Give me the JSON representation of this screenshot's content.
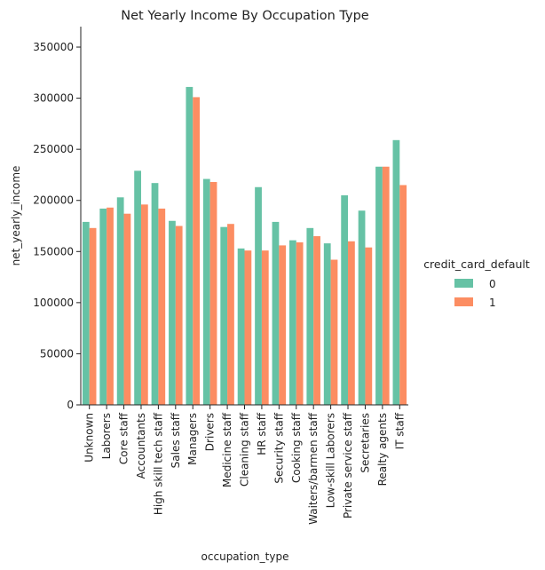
{
  "chart_data": {
    "type": "bar",
    "title": "Net Yearly Income By Occupation Type",
    "xlabel": "occupation_type",
    "ylabel": "net_yearly_income",
    "ylim": [
      0,
      370000
    ],
    "yticks": [
      0,
      50000,
      100000,
      150000,
      200000,
      250000,
      300000,
      350000
    ],
    "grid": false,
    "legend": {
      "title": "credit_card_default",
      "placement": "right"
    },
    "categories": [
      "Unknown",
      "Laborers",
      "Core staff",
      "Accountants",
      "High skill tech staff",
      "Sales staff",
      "Managers",
      "Drivers",
      "Medicine staff",
      "Cleaning staff",
      "HR staff",
      "Security staff",
      "Cooking staff",
      "Waiters/barmen staff",
      "Low-skill Laborers",
      "Private service staff",
      "Secretaries",
      "Realty agents",
      "IT staff"
    ],
    "series": [
      {
        "name": "0",
        "color": "#66c2a5",
        "values": [
          179000,
          192000,
          203000,
          229000,
          217000,
          180000,
          311000,
          221000,
          174000,
          153000,
          213000,
          179000,
          161000,
          173000,
          158000,
          205000,
          190000,
          233000,
          259000
        ]
      },
      {
        "name": "1",
        "color": "#fc8d62",
        "values": [
          173000,
          193000,
          187000,
          196000,
          192000,
          175000,
          301000,
          218000,
          177000,
          151000,
          151000,
          156000,
          159000,
          165000,
          142000,
          160000,
          154000,
          233000,
          215000
        ]
      }
    ]
  }
}
